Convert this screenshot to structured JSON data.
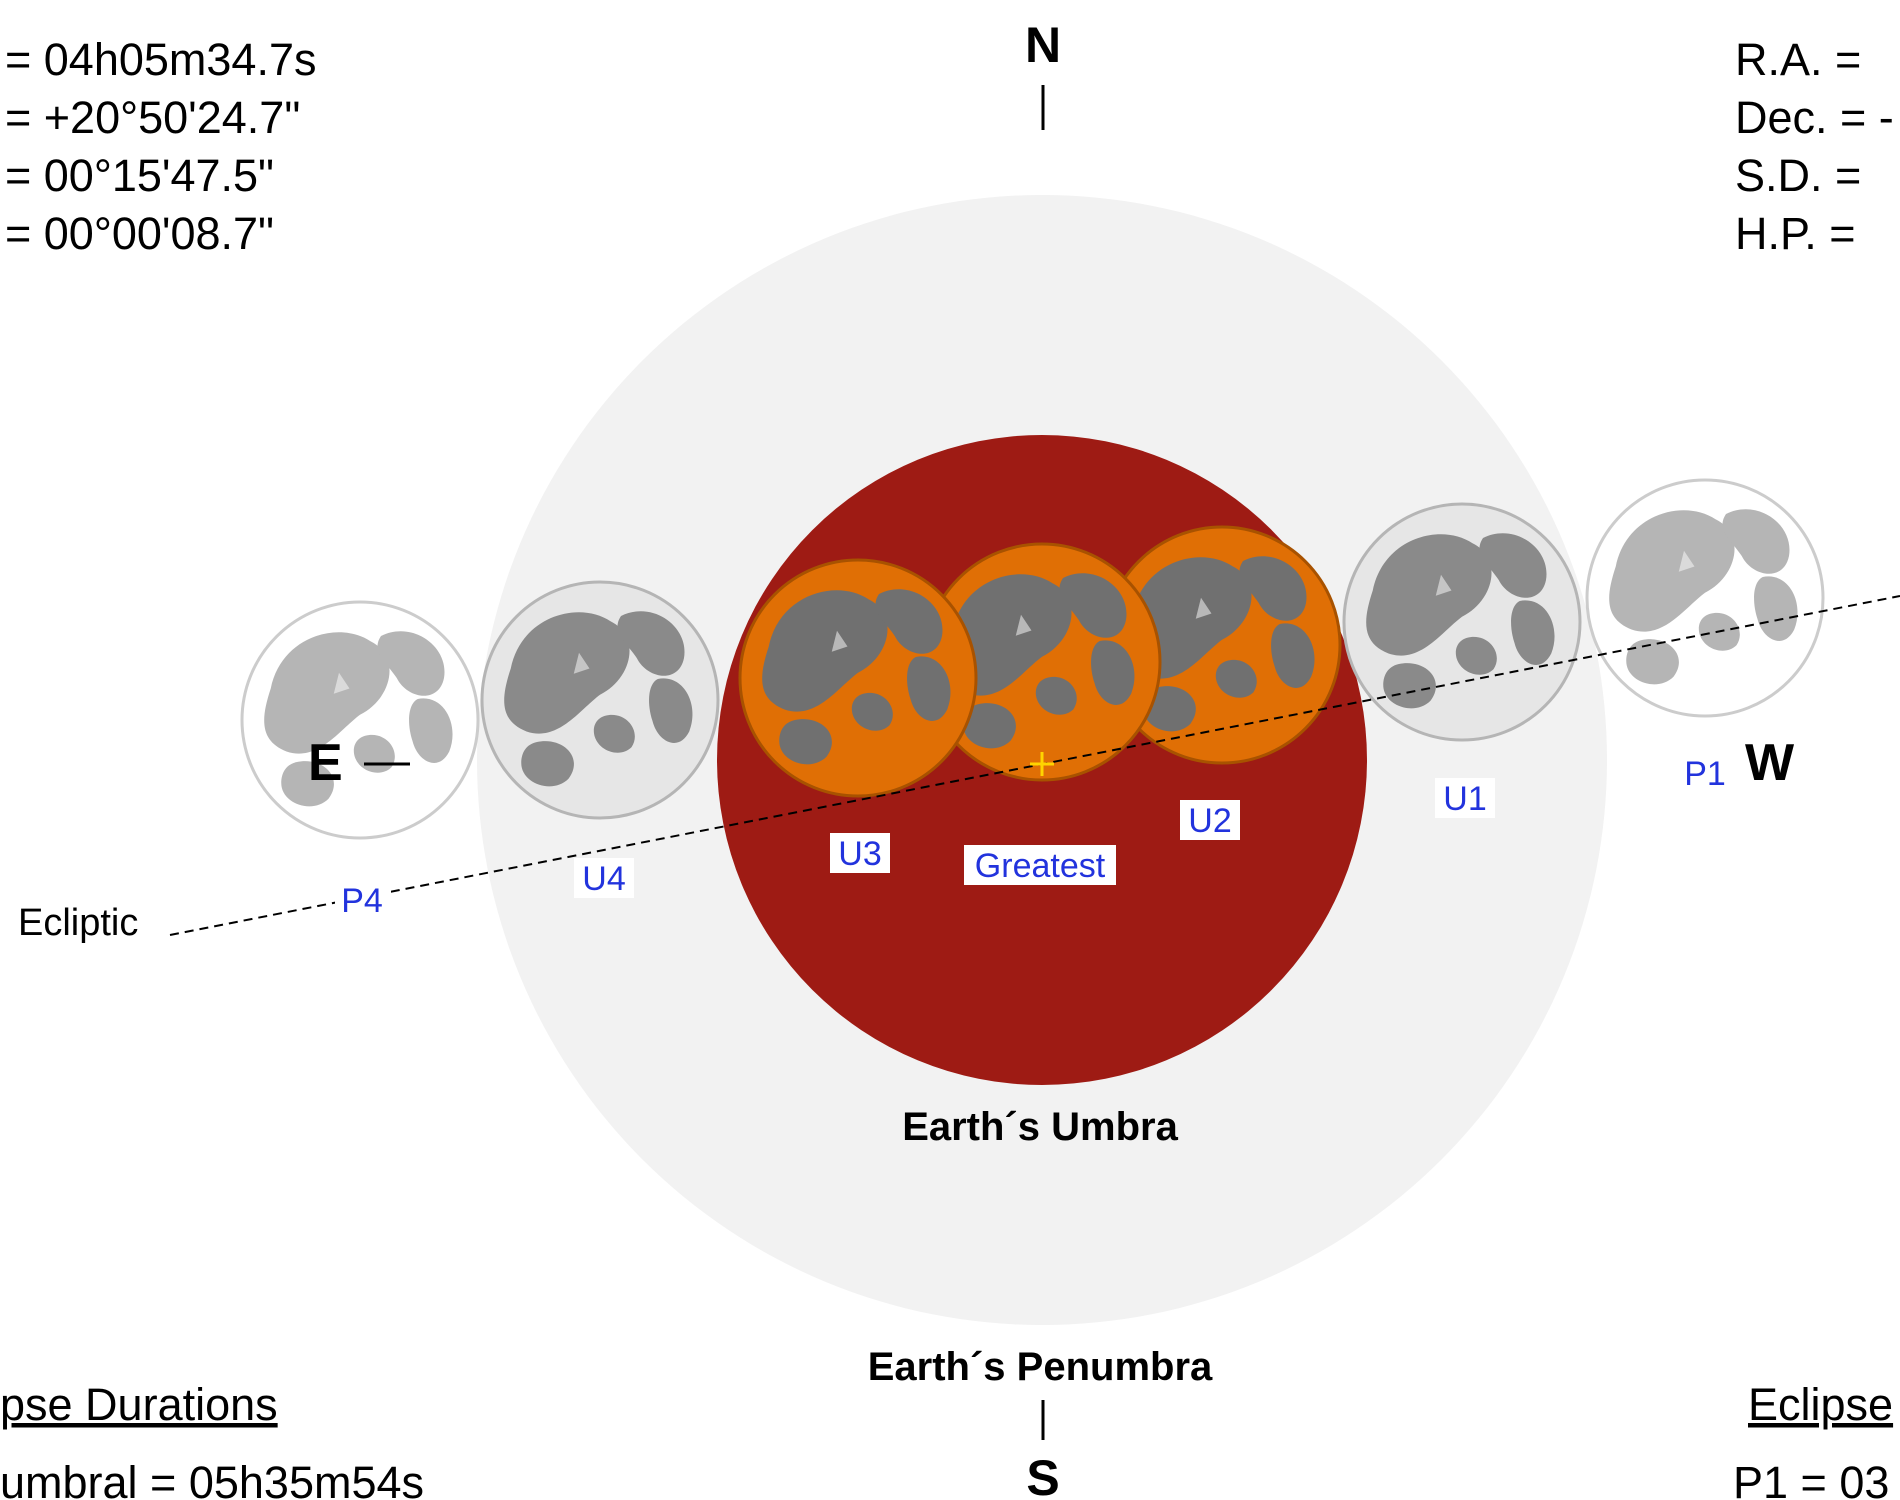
{
  "moon_coords": {
    "lines": [
      "=  04h05m34.7s",
      "= +20°50'24.7\"",
      "=  00°15'47.5\"",
      "=  00°00'08.7\""
    ]
  },
  "sun_coords": {
    "lines": [
      "R.A. =",
      "Dec. = -",
      "S.D. =",
      "H.P. ="
    ]
  },
  "compass": {
    "north": "N",
    "south": "S",
    "east": "E",
    "west": "W"
  },
  "labels": {
    "umbra": "Earth´s Umbra",
    "penumbra": "Earth´s Penumbra",
    "ecliptic": "Ecliptic"
  },
  "contacts": {
    "p1": "P1",
    "u1": "U1",
    "u2": "U2",
    "greatest": "Greatest",
    "u3": "U3",
    "u4": "U4",
    "p4": "P4"
  },
  "durations": {
    "heading": "pse Durations",
    "penumbral": "umbral = 05h35m54s"
  },
  "contact_times": {
    "heading": "Eclipse",
    "p1": "P1 = 03"
  },
  "colors": {
    "penumbra": "#f2f2f2",
    "umbra": "#9e1b14",
    "moon_eclipsed": "#e06f05",
    "moon_penumbral": "#dcdcdc",
    "moon_maria": "#707070",
    "label_blue": "#2233dd"
  }
}
